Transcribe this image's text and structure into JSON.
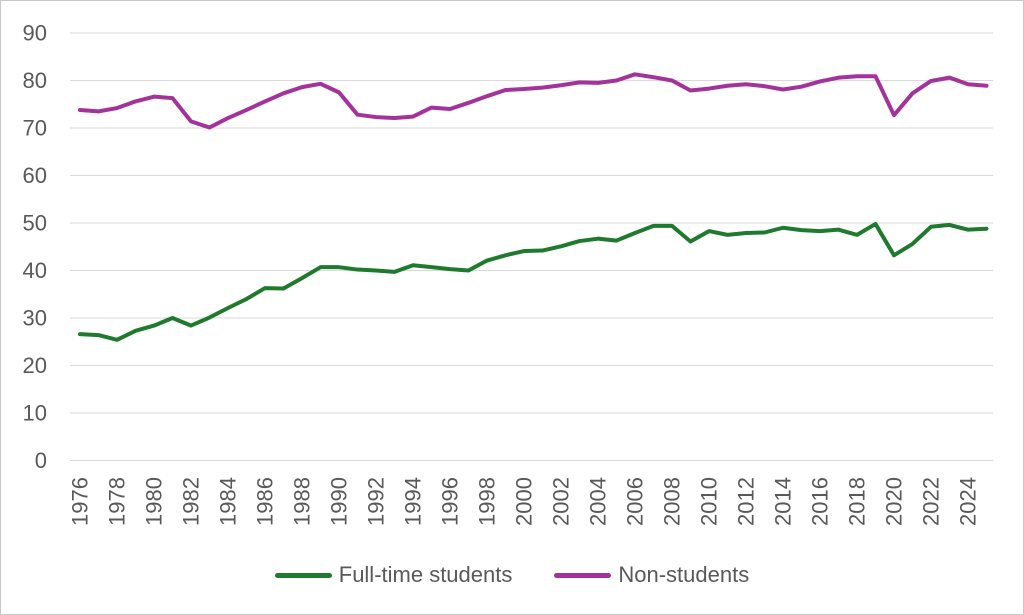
{
  "chart_data": {
    "type": "line",
    "title": "",
    "xlabel": "",
    "ylabel": "",
    "ylim": [
      0,
      90
    ],
    "yticks": [
      90,
      80,
      70,
      60,
      50,
      40,
      30,
      20,
      10,
      0
    ],
    "grid": "horizontal",
    "legend_position": "bottom-center",
    "colors": {
      "axis_text": "#595959",
      "gridline": "#d9d9d9",
      "frame_border": "#c9c9c9",
      "background": "#ffffff"
    },
    "x_years": [
      1976,
      1977,
      1978,
      1979,
      1980,
      1981,
      1982,
      1983,
      1984,
      1985,
      1986,
      1987,
      1988,
      1989,
      1990,
      1991,
      1992,
      1993,
      1994,
      1995,
      1996,
      1997,
      1998,
      1999,
      2000,
      2001,
      2002,
      2003,
      2004,
      2005,
      2006,
      2007,
      2008,
      2009,
      2010,
      2011,
      2012,
      2013,
      2014,
      2015,
      2016,
      2017,
      2018,
      2019,
      2020,
      2021,
      2022,
      2023,
      2024,
      2025
    ],
    "xtick_labels": [
      "1976",
      "1978",
      "1980",
      "1982",
      "1984",
      "1986",
      "1988",
      "1990",
      "1992",
      "1994",
      "1996",
      "1998",
      "2000",
      "2002",
      "2004",
      "2006",
      "2008",
      "2010",
      "2012",
      "2014",
      "2016",
      "2018",
      "2020",
      "2022",
      "2024"
    ],
    "series": [
      {
        "name": "Full-time students",
        "color": "#1f7a2e",
        "values": [
          26.6,
          26.4,
          25.4,
          27.3,
          28.4,
          30.0,
          28.4,
          30.1,
          32.1,
          34.0,
          36.3,
          36.2,
          38.4,
          40.7,
          40.7,
          40.2,
          40.0,
          39.7,
          41.1,
          40.7,
          40.3,
          40.0,
          42.1,
          43.2,
          44.1,
          44.2,
          45.1,
          46.2,
          46.7,
          46.3,
          47.9,
          49.4,
          49.4,
          46.1,
          48.3,
          47.5,
          47.9,
          48.0,
          49.0,
          48.5,
          48.3,
          48.6,
          47.5,
          49.8,
          43.2,
          45.6,
          49.2,
          49.6,
          48.6,
          48.8
        ]
      },
      {
        "name": "Non-students",
        "color": "#a3329b",
        "values": [
          73.8,
          73.5,
          74.2,
          75.6,
          76.6,
          76.3,
          71.4,
          70.1,
          72.1,
          73.8,
          75.6,
          77.3,
          78.6,
          79.3,
          77.5,
          72.8,
          72.3,
          72.1,
          72.4,
          74.3,
          74.0,
          75.3,
          76.7,
          78.0,
          78.2,
          78.5,
          79.0,
          79.6,
          79.5,
          80.0,
          81.3,
          80.7,
          80.0,
          77.9,
          78.3,
          78.9,
          79.2,
          78.8,
          78.1,
          78.7,
          79.8,
          80.6,
          80.9,
          80.9,
          72.7,
          77.3,
          79.9,
          80.6,
          79.2,
          78.9
        ]
      }
    ]
  }
}
